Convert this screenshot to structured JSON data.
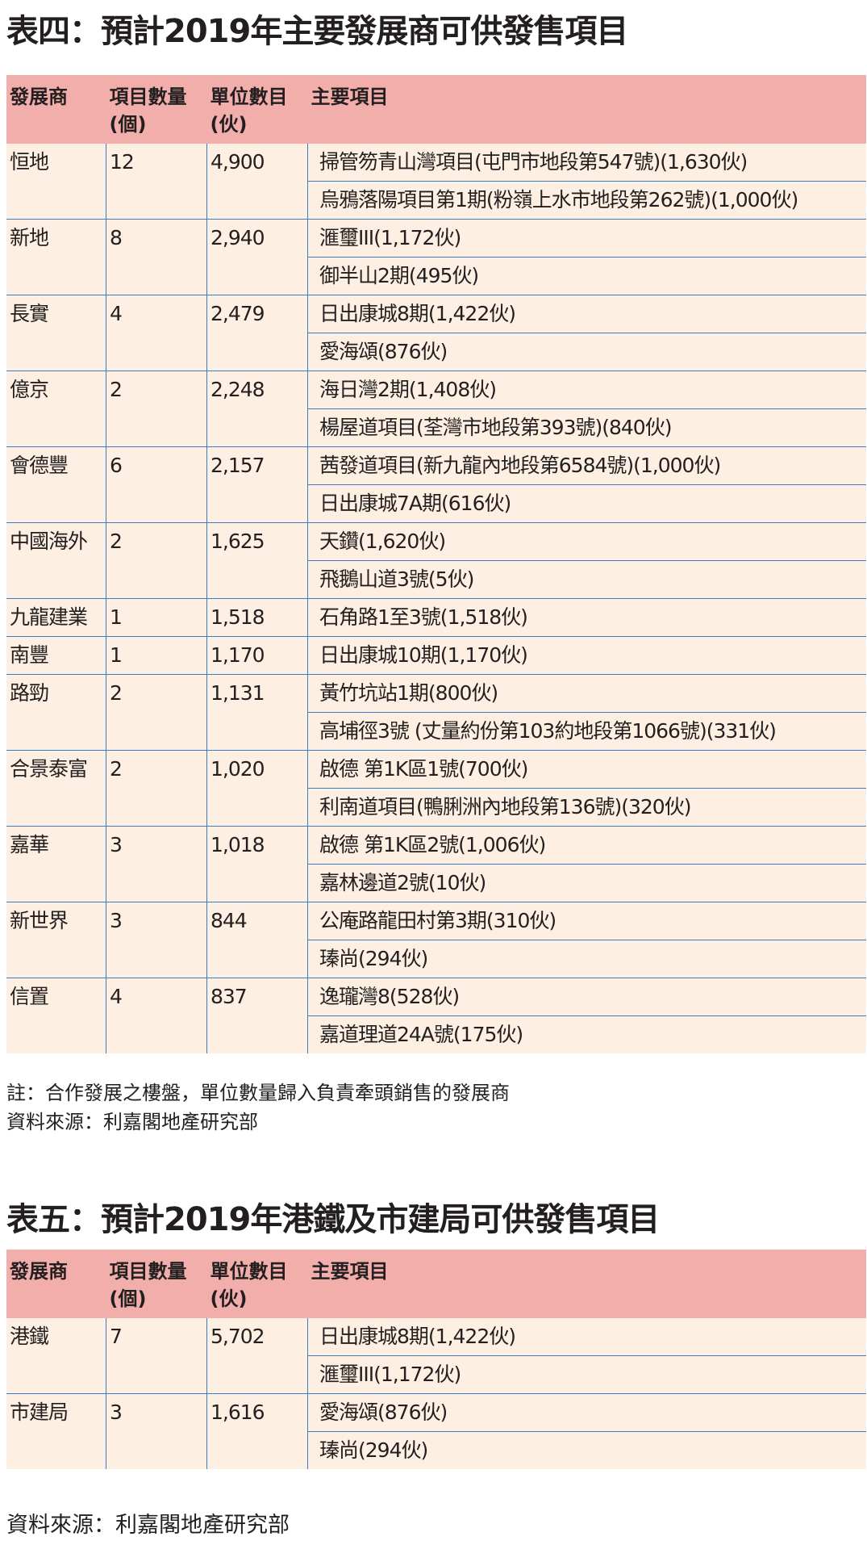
{
  "table4": {
    "title": "表四：預計2019年主要發展商可供發售項目",
    "headers": [
      "發展商",
      "項目數量\n(個)",
      "單位數目\n(伙)",
      "主要項目"
    ],
    "rows": [
      {
        "developer": "恒地",
        "count": "12",
        "units": "4,900",
        "projects": [
          "掃管笏青山灣項目(屯門市地段第547號)(1,630伙)",
          "烏鴉落陽項目第1期(粉嶺上水市地段第262號)(1,000伙)"
        ]
      },
      {
        "developer": "新地",
        "count": "8",
        "units": "2,940",
        "projects": [
          "滙璽III(1,172伙)",
          "御半山2期(495伙)"
        ]
      },
      {
        "developer": "長實",
        "count": "4",
        "units": "2,479",
        "projects": [
          "日出康城8期(1,422伙)",
          "愛海頌(876伙)"
        ]
      },
      {
        "developer": "億京",
        "count": "2",
        "units": "2,248",
        "projects": [
          "海日灣2期(1,408伙)",
          "楊屋道項目(荃灣市地段第393號)(840伙)"
        ]
      },
      {
        "developer": "會德豐",
        "count": "6",
        "units": "2,157",
        "projects": [
          "茜發道項目(新九龍內地段第6584號)(1,000伙)",
          "日出康城7A期(616伙)"
        ]
      },
      {
        "developer": "中國海外",
        "count": "2",
        "units": "1,625",
        "projects": [
          "天鑽(1,620伙)",
          "飛鵝山道3號(5伙)"
        ]
      },
      {
        "developer": "九龍建業",
        "count": "1",
        "units": "1,518",
        "projects": [
          "石角路1至3號(1,518伙)"
        ]
      },
      {
        "developer": "南豐",
        "count": "1",
        "units": "1,170",
        "projects": [
          "日出康城10期(1,170伙)"
        ]
      },
      {
        "developer": "路勁",
        "count": "2",
        "units": "1,131",
        "projects": [
          "黃竹坑站1期(800伙)",
          "高埔徑3號 (丈量約份第103約地段第1066號)(331伙)"
        ]
      },
      {
        "developer": "合景泰富",
        "count": "2",
        "units": "1,020",
        "projects": [
          "啟德 第1K區1號(700伙)",
          "利南道項目(鴨脷洲內地段第136號)(320伙)"
        ]
      },
      {
        "developer": "嘉華",
        "count": "3",
        "units": "1,018",
        "projects": [
          "啟德 第1K區2號(1,006伙)",
          "嘉林邊道2號(10伙)"
        ]
      },
      {
        "developer": "新世界",
        "count": "3",
        "units": "844",
        "projects": [
          "公庵路龍田村第3期(310伙)",
          "瑧尚(294伙)"
        ]
      },
      {
        "developer": "信置",
        "count": "4",
        "units": "837",
        "projects": [
          "逸瓏灣8(528伙)",
          "嘉道理道24A號(175伙)"
        ]
      }
    ],
    "note": "註：合作發展之樓盤，單位數量歸入負責牽頭銷售的發展商",
    "source": "資料來源：利嘉閣地產研究部"
  },
  "table5": {
    "title": "表五：預計2019年港鐵及市建局可供發售項目",
    "headers": [
      "發展商",
      "項目數量\n(個)",
      "單位數目\n(伙)",
      "主要項目"
    ],
    "rows": [
      {
        "developer": "港鐵",
        "count": "7",
        "units": "5,702",
        "projects": [
          "日出康城8期(1,422伙)",
          "滙璽III(1,172伙)"
        ]
      },
      {
        "developer": "市建局",
        "count": "3",
        "units": "1,616",
        "projects": [
          "愛海頌(876伙)",
          "瑧尚(294伙)"
        ]
      }
    ],
    "source": "資料來源：利嘉閣地產研究部"
  },
  "colors": {
    "header": "#f2aeab",
    "body": "#fdf0e2",
    "rule": "#3a7bc8"
  }
}
